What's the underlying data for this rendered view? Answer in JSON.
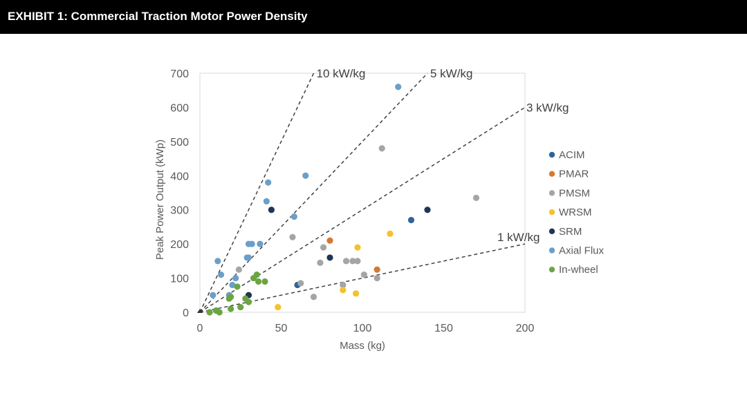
{
  "header": {
    "title": "EXHIBIT 1: Commercial Traction Motor Power Density"
  },
  "chart_data": {
    "type": "scatter",
    "title": "EXHIBIT 1: Commercial Traction Motor Power Density",
    "xlabel": "Mass (kg)",
    "ylabel": "Peak Power Output (kWp)",
    "xlim": [
      0,
      200
    ],
    "ylim": [
      0,
      700
    ],
    "xticks": [
      0,
      50,
      100,
      150,
      200
    ],
    "yticks": [
      0,
      100,
      200,
      300,
      400,
      500,
      600,
      700
    ],
    "grid": false,
    "legend_position": "right",
    "reference_lines": [
      {
        "label": "10 kW/kg",
        "slope": 10,
        "x_end": 70
      },
      {
        "label": "5 kW/kg",
        "slope": 5,
        "x_end": 140
      },
      {
        "label": "3 kW/kg",
        "slope": 3,
        "x_end": 200
      },
      {
        "label": "1 kW/kg",
        "slope": 1,
        "x_end": 200
      }
    ],
    "series": [
      {
        "name": "ACIM",
        "color": "#2E6497",
        "x": [
          130,
          60
        ],
        "y": [
          270,
          80
        ]
      },
      {
        "name": "PMAR",
        "color": "#D7782F",
        "x": [
          80,
          109
        ],
        "y": [
          210,
          125
        ]
      },
      {
        "name": "PMSM",
        "color": "#A5A5A5",
        "x": [
          112,
          170,
          57,
          76,
          74,
          90,
          94,
          97,
          101,
          109,
          88,
          62,
          70,
          24
        ],
        "y": [
          480,
          335,
          220,
          190,
          145,
          150,
          150,
          150,
          110,
          100,
          80,
          85,
          45,
          125
        ]
      },
      {
        "name": "WRSM",
        "color": "#F5C12C",
        "x": [
          117,
          97,
          88,
          96,
          48
        ],
        "y": [
          230,
          190,
          65,
          55,
          15
        ]
      },
      {
        "name": "SRM",
        "color": "#1F3556",
        "x": [
          44,
          140,
          80,
          30
        ],
        "y": [
          300,
          300,
          160,
          50
        ]
      },
      {
        "name": "Axial Flux",
        "color": "#6A9FCB",
        "x": [
          122,
          65,
          42,
          41,
          58,
          30,
          32,
          37,
          29,
          30,
          11,
          13,
          22,
          20,
          18,
          8
        ],
        "y": [
          660,
          400,
          380,
          325,
          280,
          200,
          200,
          200,
          160,
          160,
          150,
          110,
          100,
          80,
          50,
          50
        ]
      },
      {
        "name": "In-wheel",
        "color": "#6BA543",
        "x": [
          35,
          33,
          36,
          40,
          23,
          18,
          19,
          28,
          30,
          25,
          19,
          10,
          12,
          6
        ],
        "y": [
          110,
          100,
          90,
          90,
          75,
          40,
          45,
          40,
          30,
          15,
          10,
          5,
          0,
          0
        ]
      }
    ]
  }
}
